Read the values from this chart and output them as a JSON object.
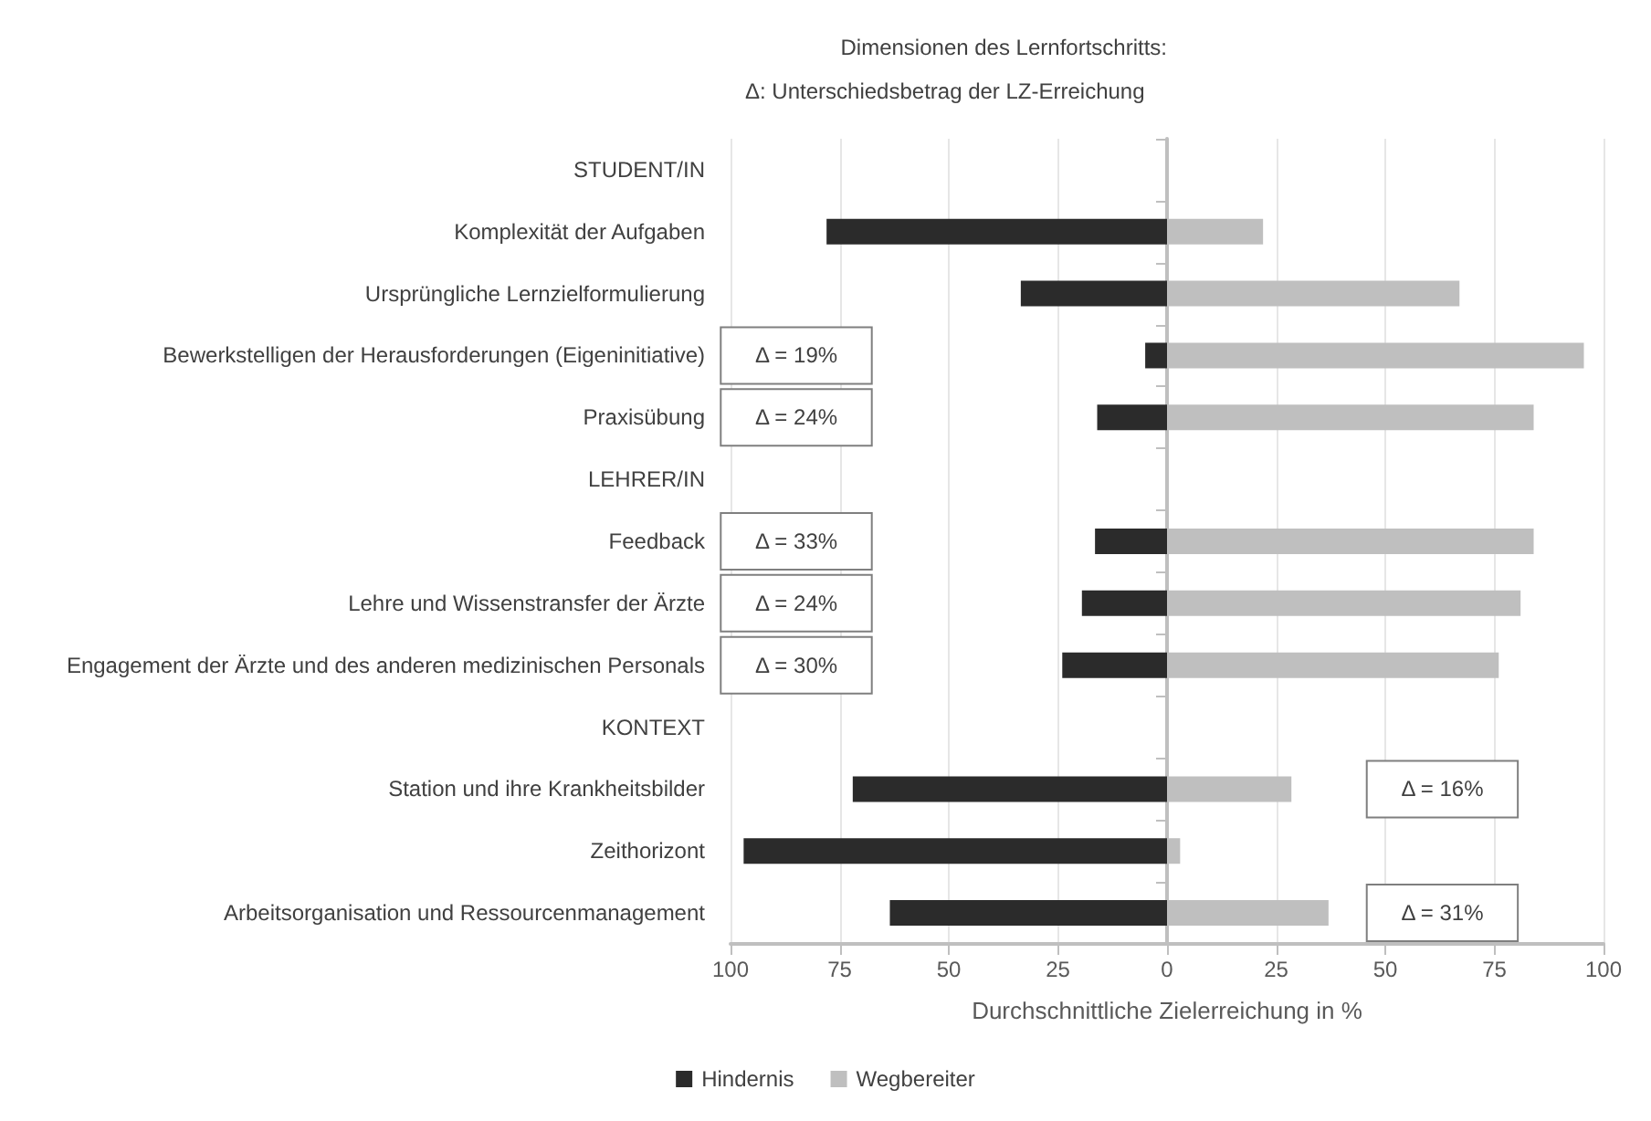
{
  "chart_data": {
    "type": "bar",
    "orientation": "horizontal",
    "stacked": true,
    "ylabel": "Dimensionen des Lernfortschritts:",
    "subtitle": "Δ: Unterschiedsbetrag der LZ-Erreichung",
    "xlabel": "Durchschnittliche Zielerreichung in %",
    "categories": [
      "STUDENT/IN",
      "Komplexität der Aufgaben",
      "Ursprüngliche Lernzielformulierung",
      "Bewerkstelligen der Herausforderungen (Eigeninitiative)",
      "Praxisübung",
      "LEHRER/IN",
      "Feedback",
      "Lehre und Wissenstransfer der Ärzte",
      "Engagement der Ärzte und des anderen medizinischen Personals",
      "KONTEXT",
      "Station und ihre Krankheitsbilder",
      "Zeithorizont",
      "Arbeitsorganisation und Ressourcenmanagement"
    ],
    "series": [
      {
        "name": "Hindernis",
        "color": "#2b2b2b",
        "values": [
          null,
          -78,
          -33.5,
          -5,
          -16,
          null,
          -16.5,
          -19.5,
          -24,
          null,
          -72,
          -97,
          -63.5
        ]
      },
      {
        "name": "Wegbereiter",
        "color": "#bfbfbf",
        "values": [
          null,
          22,
          67,
          95.5,
          84,
          null,
          84,
          81,
          76,
          null,
          28.5,
          3,
          37
        ]
      }
    ],
    "xlim": [
      -100,
      100
    ],
    "xticks": [
      {
        "value": -100,
        "label": "100"
      },
      {
        "value": -75,
        "label": "75"
      },
      {
        "value": -50,
        "label": "50"
      },
      {
        "value": -25,
        "label": "25"
      },
      0,
      25,
      50,
      75,
      100
    ],
    "grid": "x",
    "legend": "bottom",
    "annotations": [
      "Δ = 19%",
      "Δ = 24%",
      "Δ = 33%",
      "Δ = 24%",
      "Δ = 30%",
      "Δ = 16%",
      "Δ = 31%"
    ]
  }
}
